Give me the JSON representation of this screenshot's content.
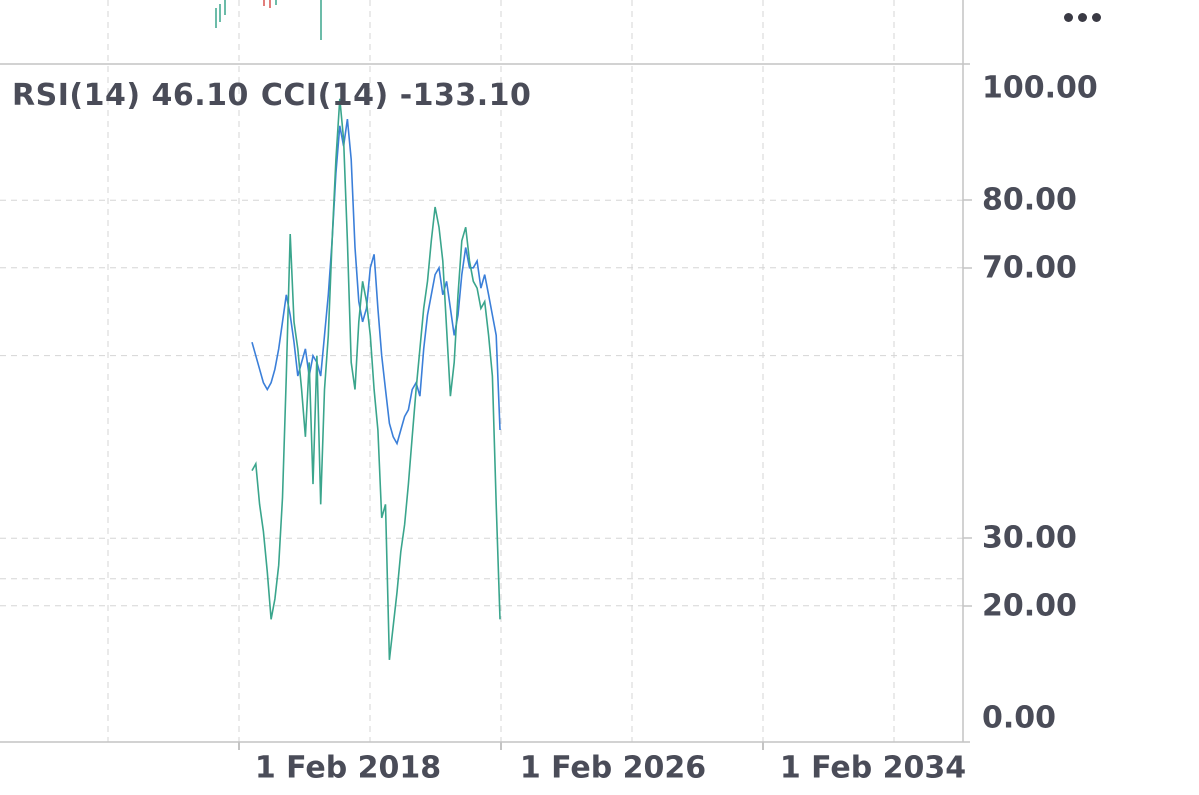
{
  "more_menu_icon": "ellipsis-horizontal-icon",
  "indicator_legend": {
    "rsi": "RSI(14) 46.10",
    "cci": "CCI(14) -133.10"
  },
  "colors": {
    "rsi_line": "#3b7fd9",
    "cci_line": "#3aa58c",
    "grid": "#d5d5d5",
    "axis_text": "#4a4c58",
    "axis_line": "#c4c4c4"
  },
  "chart_data": {
    "type": "line",
    "title": "",
    "xlabel": "",
    "ylabel": "",
    "x_tick_labels": [
      "1 Feb 2018",
      "1 Feb 2026",
      "1 Feb 2034"
    ],
    "y_tick_labels": [
      "100.00",
      "80.00",
      "70.00",
      "30.00",
      "20.00",
      "0.00"
    ],
    "reference_lines": [
      57,
      24
    ],
    "ylim": [
      0,
      100
    ],
    "grid": true,
    "series": [
      {
        "name": "RSI(14)",
        "color": "#3b7fd9",
        "values": [
          59,
          57,
          55,
          53,
          52,
          53,
          55,
          58,
          62,
          66,
          63,
          59,
          54,
          56,
          58,
          54,
          57,
          56,
          54,
          60,
          66,
          74,
          84,
          91,
          88,
          92,
          86,
          73,
          65,
          62,
          64,
          70,
          72,
          64,
          57,
          52,
          47,
          45,
          44,
          46,
          48,
          49,
          52,
          53,
          51,
          58,
          63,
          66,
          69,
          70,
          66,
          68,
          64,
          60,
          63,
          69,
          73,
          70,
          70,
          71,
          67,
          69,
          66,
          63,
          60,
          46
        ]
      },
      {
        "name": "CCI(14)",
        "color": "#3aa58c",
        "values": [
          40,
          41,
          35,
          31,
          25,
          18,
          21,
          26,
          36,
          54,
          75,
          62,
          58,
          52,
          45,
          56,
          38,
          57,
          35,
          52,
          60,
          74,
          86,
          95,
          89,
          74,
          56,
          52,
          62,
          68,
          65,
          60,
          52,
          46,
          33,
          35,
          12,
          17,
          22,
          28,
          32,
          38,
          45,
          52,
          58,
          64,
          68,
          74,
          79,
          76,
          71,
          61,
          51,
          56,
          66,
          74,
          76,
          71,
          68,
          67,
          64,
          65,
          60,
          54,
          35,
          18
        ]
      }
    ]
  }
}
